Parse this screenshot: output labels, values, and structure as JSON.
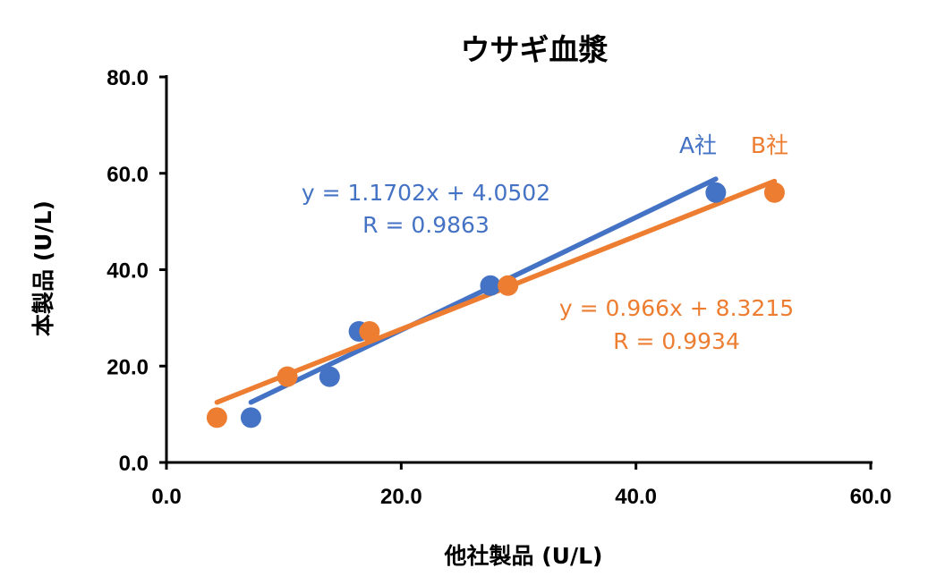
{
  "chart_data": {
    "type": "scatter",
    "title": "ウサギ血漿",
    "xlabel": "他社製品 (U/L)",
    "ylabel": "本製品 (U/L)",
    "xlim": [
      0,
      60
    ],
    "ylim": [
      0,
      80
    ],
    "x_ticks": [
      "0.0",
      "20.0",
      "40.0",
      "60.0"
    ],
    "y_ticks": [
      "0.0",
      "20.0",
      "40.0",
      "60.0",
      "80.0"
    ],
    "grid": false,
    "series": [
      {
        "name": "A社",
        "color": "#4472C4",
        "points": [
          [
            7.2,
            9.3
          ],
          [
            13.9,
            17.8
          ],
          [
            16.4,
            27.2
          ],
          [
            27.6,
            36.7
          ],
          [
            46.8,
            56.0
          ]
        ],
        "trendline": {
          "slope": 1.1702,
          "intercept": 4.0502,
          "x_range": [
            7.2,
            46.8
          ]
        },
        "equation": "y = 1.1702x + 4.0502",
        "r_label": "R = 0.9863"
      },
      {
        "name": "B社",
        "color": "#ED7D31",
        "points": [
          [
            4.3,
            9.3
          ],
          [
            10.3,
            17.8
          ],
          [
            17.3,
            27.2
          ],
          [
            29.1,
            36.7
          ],
          [
            51.8,
            56.0
          ]
        ],
        "trendline": {
          "slope": 0.966,
          "intercept": 8.3215,
          "x_range": [
            4.3,
            51.8
          ]
        },
        "equation": "y = 0.966x + 8.3215",
        "r_label": "R = 0.9934"
      }
    ]
  }
}
